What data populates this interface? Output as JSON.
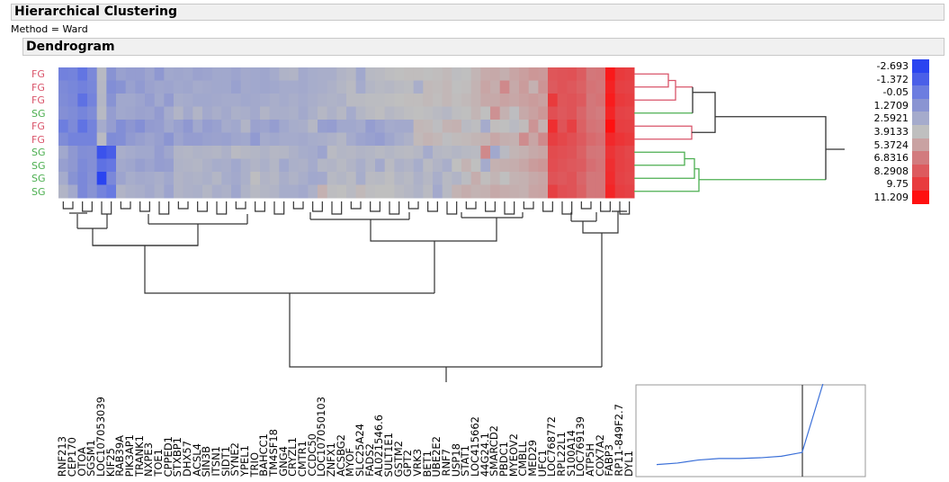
{
  "header": {
    "title": "Hierarchical Clustering",
    "method": "Method = Ward",
    "section": "Dendrogram"
  },
  "colors": {
    "fg": "#d9546a",
    "sg": "#4caf50",
    "line": "#333333"
  },
  "chart_data": {
    "type": "heatmap",
    "rows": [
      "FG",
      "FG",
      "FG",
      "SG",
      "FG",
      "FG",
      "SG",
      "SG",
      "SG",
      "SG"
    ],
    "columns": [
      "RNF213",
      "CEP170",
      "OTOA",
      "SGSM1",
      "LOC107053039",
      "KIF25",
      "RAB39A",
      "PIK3AP1",
      "TRANK1",
      "NXPE3",
      "TOE1",
      "CPPED1",
      "STXBP1",
      "DHX57",
      "ACSL4",
      "SIN3B",
      "ITSN1",
      "SIDT1",
      "SYNE2",
      "YPEL1",
      "TRIO",
      "BAHCC1",
      "TM4SF18",
      "GNG4",
      "CRYZL1",
      "CMTR1",
      "CCDC50",
      "LOC107050103",
      "ZNFX1",
      "ACSBG2",
      "MYOF",
      "SLC25A24",
      "FADS2",
      "AL021546.6",
      "SULT1E1",
      "GSTM2",
      "GPT2",
      "VRK3",
      "BET1",
      "UBE2E2",
      "RNF7",
      "USP18",
      "STAT1",
      "LOC415662",
      "44G24.1",
      "SMARCD2",
      "PBDC1",
      "MYEOV2",
      "CMBLL",
      "MED29",
      "UFC1",
      "LOC768772",
      "RPL22L1",
      "S100A14",
      "LOC769139",
      "ATP5H",
      "COX7A2",
      "FABP3",
      "RP11-849F2.7",
      "DYL1"
    ],
    "values": [
      [
        0.2,
        0.3,
        -0.4,
        0.6,
        3.5,
        1.2,
        2.0,
        1.8,
        1.8,
        2.2,
        1.5,
        2.4,
        2.3,
        2.4,
        2.1,
        2.2,
        2.4,
        2.4,
        2.2,
        2.5,
        2.4,
        2.3,
        2.6,
        3.1,
        3.2,
        2.5,
        2.7,
        2.8,
        2.8,
        3.2,
        3.4,
        2.4,
        3.5,
        3.6,
        3.8,
        3.9,
        4.0,
        4.0,
        3.9,
        4.0,
        4.2,
        3.8,
        3.9,
        4.4,
        4.9,
        5.0,
        4.7,
        5.2,
        5.5,
        5.8,
        5.7,
        8.5,
        8.6,
        8.7,
        8.2,
        7.0,
        7.1,
        10.9,
        9.8,
        9.6
      ],
      [
        0.7,
        0.5,
        0.2,
        0.5,
        3.4,
        0.9,
        1.2,
        2.0,
        1.6,
        2.1,
        2.3,
        2.2,
        2.4,
        2.3,
        2.6,
        2.5,
        2.4,
        2.4,
        2.0,
        2.5,
        2.4,
        2.3,
        2.4,
        2.6,
        2.6,
        2.5,
        2.7,
        2.8,
        3.0,
        3.3,
        3.6,
        2.6,
        3.3,
        3.5,
        3.4,
        3.6,
        3.7,
        2.8,
        4.2,
        4.1,
        4.3,
        3.9,
        4.0,
        4.5,
        5.2,
        4.8,
        6.3,
        5.0,
        5.6,
        4.6,
        5.9,
        8.3,
        8.6,
        8.4,
        8.0,
        7.2,
        7.0,
        10.6,
        9.5,
        9.4
      ],
      [
        0.8,
        0.6,
        -0.6,
        0.3,
        3.3,
        1.2,
        2.4,
        2.4,
        2.2,
        1.8,
        2.4,
        1.7,
        2.7,
        2.6,
        2.4,
        2.4,
        2.5,
        2.6,
        2.6,
        2.4,
        2.5,
        2.6,
        2.8,
        2.6,
        2.8,
        2.6,
        2.8,
        3.0,
        3.1,
        3.0,
        3.6,
        3.6,
        3.7,
        3.7,
        3.8,
        3.9,
        4.0,
        4.0,
        4.2,
        4.0,
        4.3,
        4.0,
        4.2,
        4.5,
        5.0,
        5.0,
        5.3,
        5.1,
        5.4,
        5.6,
        5.4,
        9.8,
        8.5,
        8.6,
        8.3,
        7.0,
        7.2,
        10.8,
        9.8,
        9.6
      ],
      [
        1.0,
        0.8,
        0.4,
        0.8,
        3.5,
        1.8,
        2.4,
        2.3,
        2.1,
        2.2,
        1.7,
        2.6,
        3.2,
        2.5,
        3.2,
        2.5,
        2.8,
        2.5,
        2.9,
        2.8,
        2.5,
        3.2,
        2.8,
        2.8,
        2.9,
        2.5,
        2.9,
        3.4,
        3.0,
        3.4,
        2.6,
        3.3,
        3.6,
        3.8,
        3.4,
        3.6,
        3.8,
        3.9,
        3.8,
        3.6,
        3.4,
        3.8,
        3.9,
        4.4,
        3.9,
        6.0,
        4.6,
        3.8,
        5.0,
        5.4,
        5.8,
        8.8,
        8.4,
        8.6,
        7.8,
        7.0,
        6.8,
        10.5,
        9.4,
        9.3
      ],
      [
        0.0,
        0.7,
        -0.5,
        0.3,
        2.6,
        1.8,
        0.9,
        1.4,
        1.0,
        1.7,
        1.8,
        2.4,
        2.0,
        1.5,
        2.4,
        1.8,
        2.0,
        2.6,
        2.4,
        3.2,
        2.1,
        2.2,
        1.8,
        2.4,
        2.7,
        2.8,
        3.4,
        1.9,
        1.8,
        2.4,
        2.4,
        2.6,
        1.8,
        2.2,
        2.6,
        2.5,
        2.5,
        4.3,
        4.2,
        3.8,
        4.5,
        4.6,
        3.6,
        3.8,
        2.6,
        4.0,
        3.9,
        3.6,
        4.1,
        5.9,
        4.6,
        10.2,
        8.6,
        9.5,
        8.0,
        7.2,
        7.0,
        11.2,
        9.6,
        9.5
      ],
      [
        0.8,
        0.3,
        0.3,
        0.3,
        3.6,
        0.8,
        0.9,
        1.6,
        1.9,
        2.2,
        1.9,
        1.3,
        2.2,
        1.8,
        1.8,
        2.0,
        2.1,
        2.0,
        2.3,
        2.4,
        1.6,
        2.6,
        2.4,
        2.6,
        2.6,
        2.5,
        2.7,
        2.8,
        3.0,
        3.3,
        2.6,
        2.2,
        2.0,
        1.8,
        2.3,
        2.7,
        3.0,
        4.2,
        4.5,
        4.3,
        3.8,
        4.1,
        4.2,
        4.4,
        4.5,
        5.1,
        4.7,
        4.6,
        6.2,
        5.2,
        6.3,
        9.6,
        9.2,
        8.8,
        8.3,
        7.6,
        7.3,
        10.4,
        10.0,
        9.8
      ],
      [
        2.4,
        1.5,
        0.9,
        1.0,
        -2.0,
        -1.4,
        2.8,
        2.6,
        2.4,
        2.4,
        1.8,
        2.3,
        3.2,
        3.3,
        3.1,
        3.2,
        3.3,
        3.0,
        3.6,
        3.4,
        3.3,
        3.1,
        3.4,
        3.3,
        3.0,
        2.7,
        2.6,
        2.2,
        3.6,
        3.3,
        3.4,
        3.2,
        3.3,
        3.5,
        3.3,
        3.5,
        3.6,
        3.4,
        2.6,
        3.4,
        3.5,
        3.3,
        3.5,
        3.6,
        6.3,
        2.4,
        3.6,
        4.4,
        4.6,
        5.0,
        5.2,
        9.0,
        8.8,
        8.6,
        8.0,
        7.1,
        7.0,
        10.0,
        9.5,
        9.2
      ],
      [
        1.9,
        1.5,
        0.7,
        1.0,
        -0.6,
        -0.3,
        2.5,
        2.3,
        1.9,
        2.2,
        1.8,
        1.9,
        3.1,
        3.2,
        3.3,
        3.0,
        2.7,
        2.8,
        2.4,
        2.9,
        3.2,
        2.9,
        3.3,
        2.4,
        2.9,
        3.0,
        2.6,
        3.3,
        3.2,
        3.5,
        3.2,
        2.8,
        3.3,
        2.5,
        3.6,
        3.0,
        3.2,
        2.7,
        3.6,
        3.2,
        2.8,
        3.9,
        4.5,
        3.9,
        2.6,
        4.6,
        4.7,
        4.8,
        5.1,
        5.6,
        5.8,
        8.9,
        8.6,
        8.4,
        8.2,
        7.4,
        7.1,
        10.2,
        9.5,
        9.3
      ],
      [
        2.6,
        1.2,
        0.6,
        1.1,
        -2.7,
        0.6,
        2.2,
        2.7,
        2.5,
        2.6,
        2.8,
        2.4,
        3.2,
        3.0,
        3.1,
        2.9,
        3.3,
        2.7,
        2.5,
        2.9,
        3.8,
        3.2,
        3.4,
        2.8,
        3.1,
        2.8,
        2.4,
        2.5,
        3.5,
        3.3,
        3.6,
        2.7,
        3.6,
        3.5,
        3.8,
        3.3,
        3.5,
        3.0,
        3.4,
        2.8,
        3.5,
        3.2,
        3.7,
        4.8,
        4.0,
        4.4,
        3.9,
        4.5,
        4.6,
        5.0,
        5.2,
        8.6,
        8.4,
        8.6,
        7.8,
        7.0,
        7.0,
        10.3,
        9.4,
        9.2
      ],
      [
        3.2,
        2.5,
        0.6,
        1.2,
        0.3,
        -0.2,
        3.2,
        2.9,
        2.8,
        2.5,
        2.9,
        2.2,
        3.2,
        3.0,
        2.9,
        3.3,
        2.8,
        3.0,
        2.3,
        3.1,
        3.5,
        3.3,
        3.2,
        2.7,
        2.7,
        2.5,
        3.0,
        4.6,
        3.8,
        3.9,
        3.6,
        4.2,
        3.8,
        3.9,
        3.9,
        3.6,
        3.4,
        3.1,
        3.6,
        2.5,
        3.5,
        4.5,
        4.8,
        4.5,
        4.6,
        5.0,
        4.8,
        4.7,
        4.6,
        5.2,
        5.3,
        9.5,
        8.8,
        8.6,
        8.0,
        7.0,
        7.0,
        10.5,
        9.6,
        9.4
      ]
    ],
    "legend": [
      {
        "label": "-2.693",
        "value": -2.693,
        "color": "#2a44f0"
      },
      {
        "label": "-1.372",
        "value": -1.372,
        "color": "#4a5fe8"
      },
      {
        "label": "-0.05",
        "value": -0.05,
        "color": "#6c7de0"
      },
      {
        "label": "1.2709",
        "value": 1.2709,
        "color": "#8a94d2"
      },
      {
        "label": "2.5921",
        "value": 2.5921,
        "color": "#a5abcc"
      },
      {
        "label": "3.9133",
        "value": 3.9133,
        "color": "#bfbfbf"
      },
      {
        "label": "5.3724",
        "value": 5.3724,
        "color": "#c9a2a2"
      },
      {
        "label": "6.8316",
        "value": 6.8316,
        "color": "#d27b7e"
      },
      {
        "label": "8.2908",
        "value": 8.2908,
        "color": "#dd5a5e"
      },
      {
        "label": "9.75",
        "value": 9.75,
        "color": "#e83b3e"
      },
      {
        "label": "11.209",
        "value": 11.209,
        "color": "#ff1010"
      }
    ],
    "legend_placement": "right",
    "distance_plot": {
      "type": "line",
      "values": [
        0.4,
        0.6,
        1.0,
        1.2,
        1.2,
        1.3,
        1.5,
        2.0,
        6.5
      ],
      "cut_index": 7,
      "color": "#3a6fd8"
    }
  }
}
